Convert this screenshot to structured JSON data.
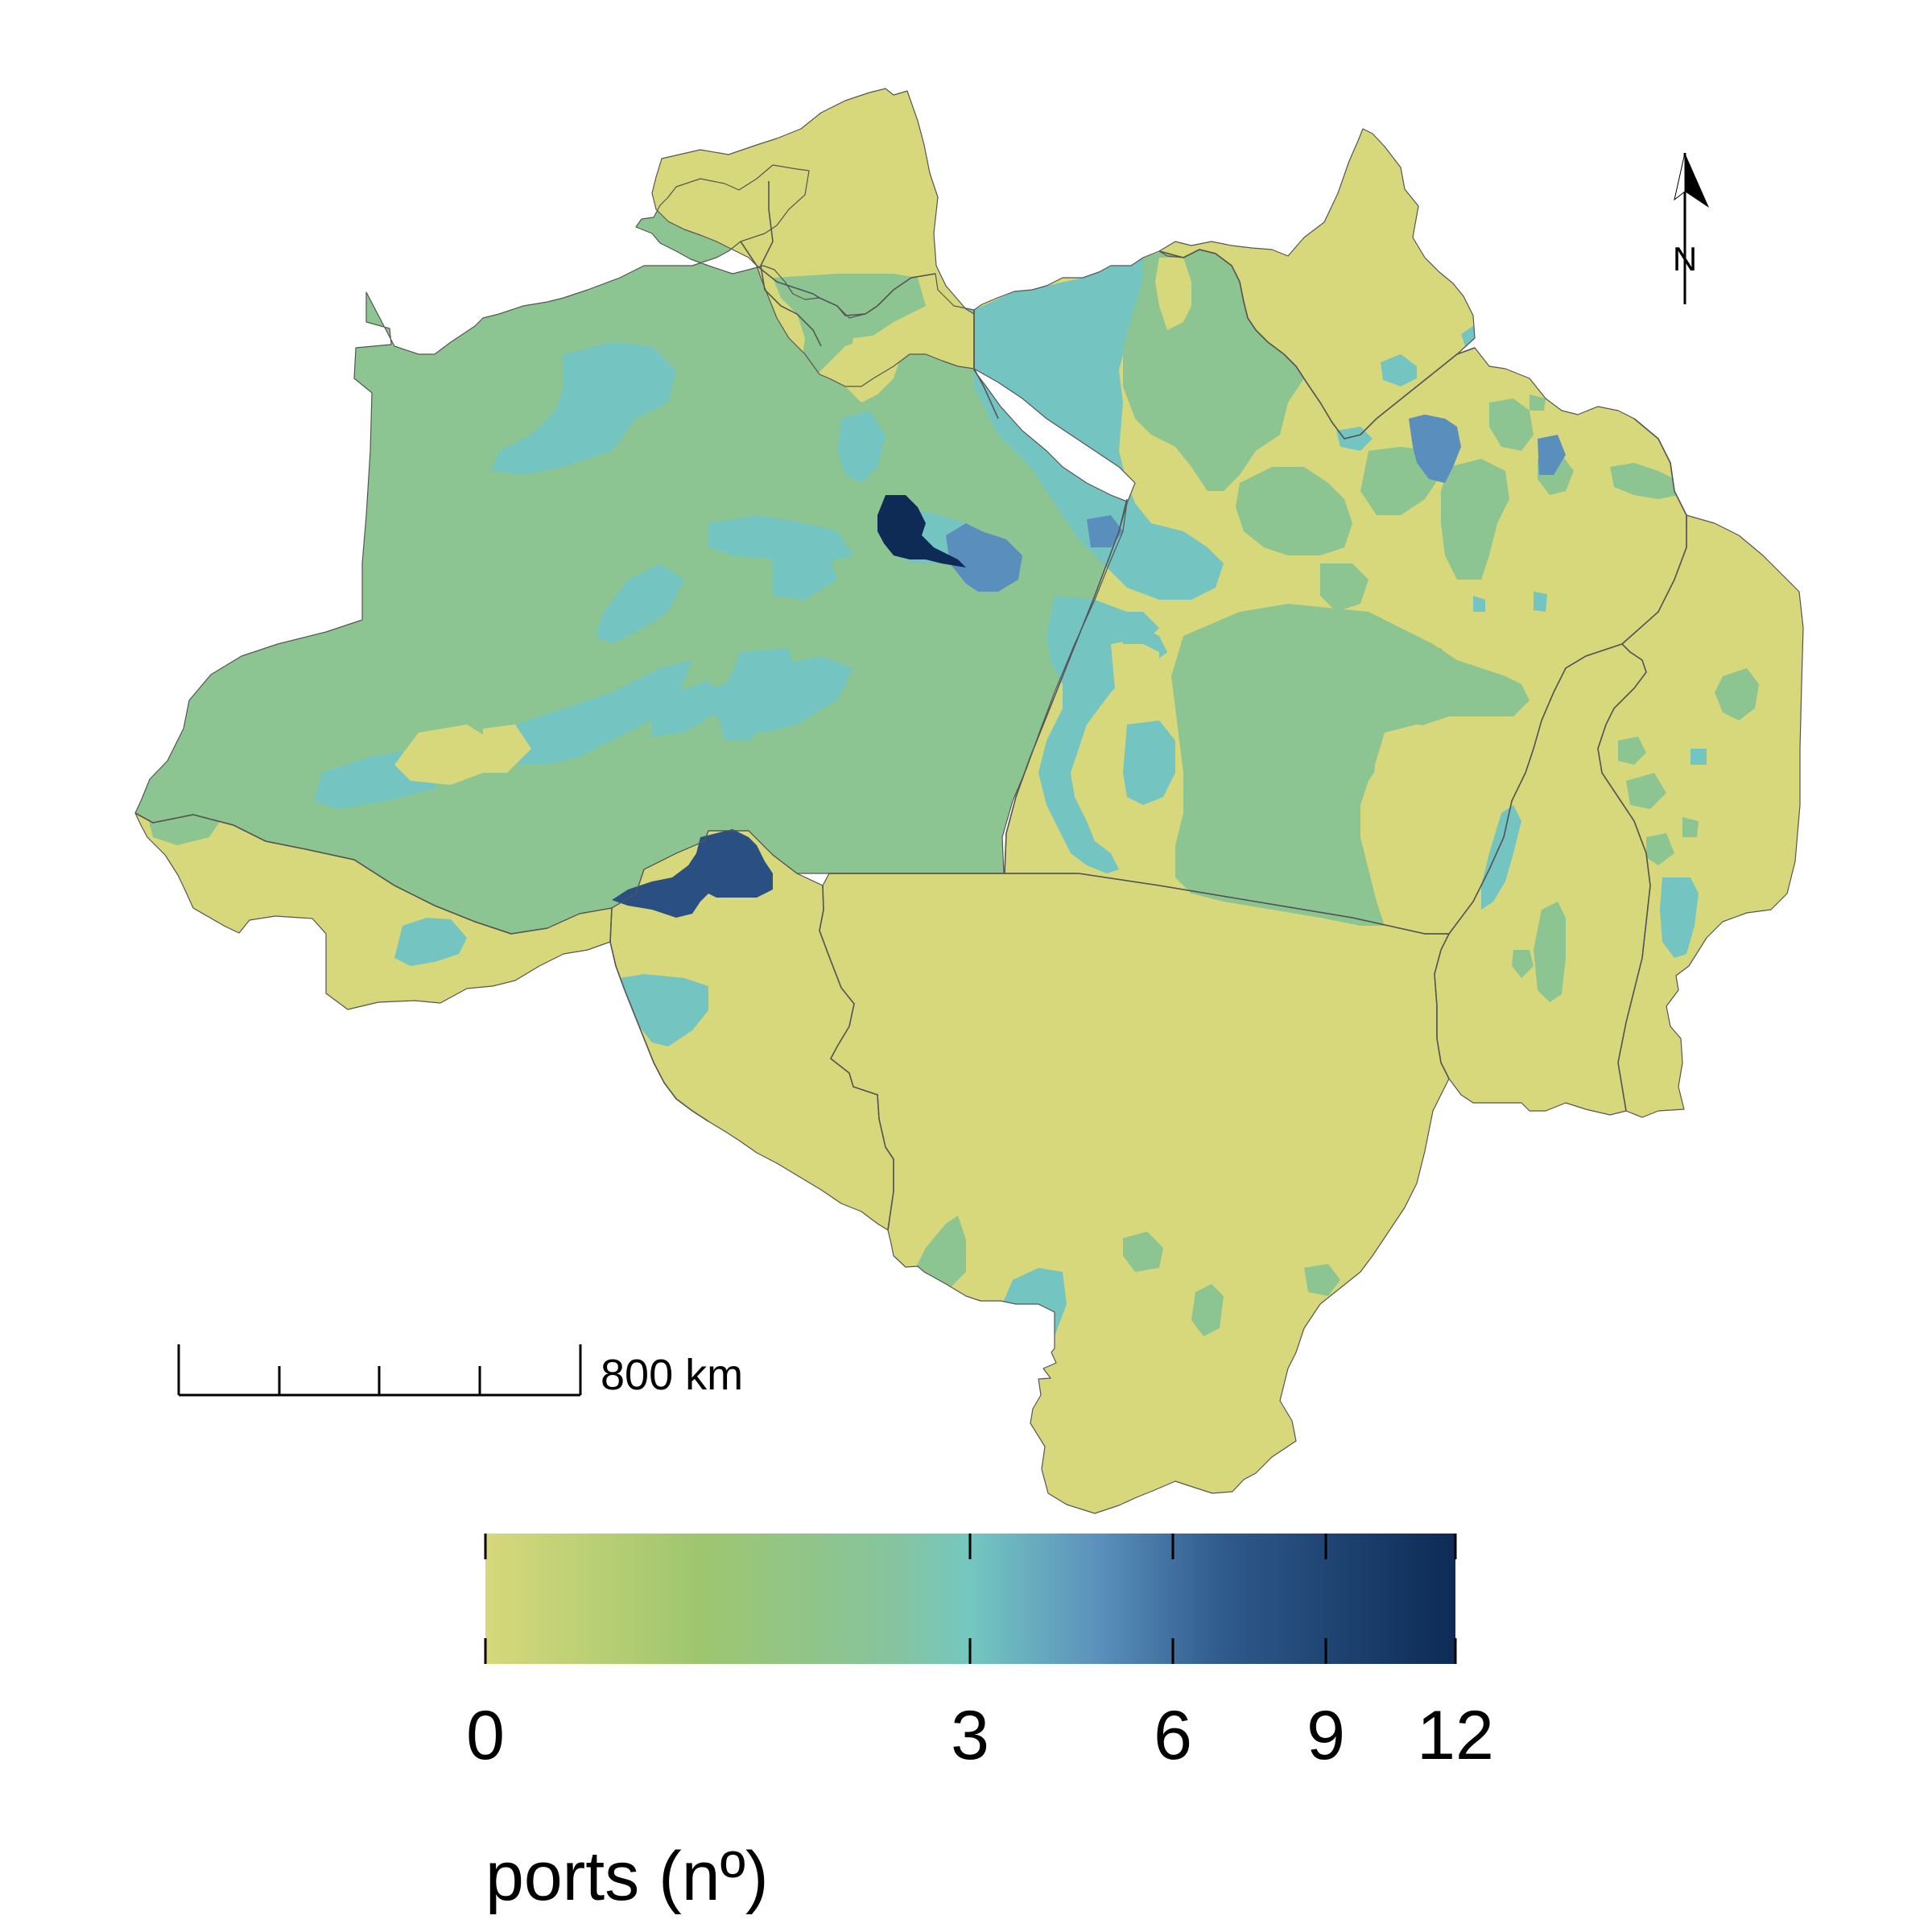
{
  "map": {
    "scale_bar": {
      "label": "800 km"
    },
    "north_arrow": {
      "label": "N"
    },
    "legend": {
      "title": "ports (nº)",
      "ticks": [
        "0",
        "3",
        "6",
        "9",
        "12"
      ],
      "colors": [
        "#d7d87b",
        "#9ec66f",
        "#74c7c0",
        "#5b91bc",
        "#2c5487",
        "#0d2b55"
      ]
    },
    "fills": {
      "zero": "#d7d87b",
      "low": "#8cc591",
      "mid": "#74c4c2",
      "high": "#5a8fbd",
      "higher": "#2a4f82",
      "max": "#0d2b55"
    },
    "boundary_color": "#000000",
    "state_line_color": "#555555"
  }
}
